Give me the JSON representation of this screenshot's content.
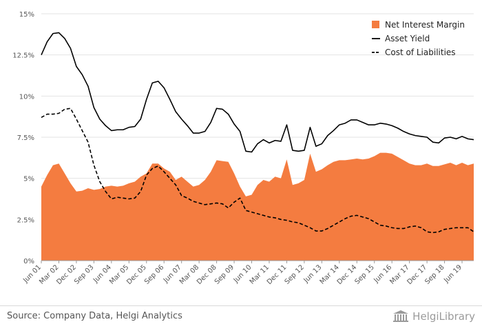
{
  "chart_data": {
    "type": "area+line",
    "ylim": [
      0,
      15
    ],
    "y_ticks": [
      "0%",
      "2.5%",
      "5%",
      "7.5%",
      "10%",
      "12.5%",
      "15%"
    ],
    "y_tick_values": [
      0,
      2.5,
      5,
      7.5,
      10,
      12.5,
      15
    ],
    "x_ticks": [
      "Jun 01",
      "Mar 02",
      "Dec 02",
      "Sep 03",
      "Jun 04",
      "Mar 05",
      "Dec 05",
      "Sep 06",
      "Jun 07",
      "Mar 08",
      "Dec 08",
      "Sep 09",
      "Jun 10",
      "Mar 11",
      "Dec 11",
      "Sep 12",
      "Jun 13",
      "Mar 14",
      "Dec 14",
      "Sep 15",
      "Jun 16",
      "Mar 17",
      "Dec 17",
      "Sep 18",
      "Jun 19"
    ],
    "x": [
      "Jun 01",
      "Sep 01",
      "Dec 01",
      "Mar 02",
      "Jun 02",
      "Sep 02",
      "Dec 02",
      "Mar 03",
      "Jun 03",
      "Sep 03",
      "Dec 03",
      "Mar 04",
      "Jun 04",
      "Sep 04",
      "Dec 04",
      "Mar 05",
      "Jun 05",
      "Sep 05",
      "Dec 05",
      "Mar 06",
      "Jun 06",
      "Sep 06",
      "Dec 06",
      "Mar 07",
      "Jun 07",
      "Sep 07",
      "Dec 07",
      "Mar 08",
      "Jun 08",
      "Sep 08",
      "Dec 08",
      "Mar 09",
      "Jun 09",
      "Sep 09",
      "Dec 09",
      "Mar 10",
      "Jun 10",
      "Sep 10",
      "Dec 10",
      "Mar 11",
      "Jun 11",
      "Sep 11",
      "Dec 11",
      "Mar 12",
      "Jun 12",
      "Sep 12",
      "Dec 12",
      "Mar 13",
      "Jun 13",
      "Sep 13",
      "Dec 13",
      "Mar 14",
      "Jun 14",
      "Sep 14",
      "Dec 14",
      "Mar 15",
      "Jun 15",
      "Sep 15",
      "Dec 15",
      "Mar 16",
      "Jun 16",
      "Sep 16",
      "Dec 16",
      "Mar 17",
      "Jun 17",
      "Sep 17",
      "Dec 17",
      "Mar 18",
      "Jun 18",
      "Sep 18",
      "Dec 18",
      "Mar 19",
      "Jun 19",
      "Sep 19",
      "Dec 19"
    ],
    "series": [
      {
        "name": "Net Interest Margin",
        "kind": "area",
        "color": "#f47c40",
        "values": [
          4.5,
          5.2,
          5.8,
          5.9,
          5.3,
          4.7,
          4.2,
          4.25,
          4.4,
          4.3,
          4.35,
          4.5,
          4.55,
          4.5,
          4.55,
          4.7,
          4.8,
          5.1,
          5.3,
          5.9,
          5.9,
          5.6,
          5.4,
          4.9,
          5.1,
          4.8,
          4.5,
          4.6,
          4.9,
          5.4,
          6.1,
          6.05,
          6.0,
          5.3,
          4.5,
          3.9,
          4.0,
          4.6,
          4.9,
          4.8,
          5.1,
          5.0,
          6.15,
          4.6,
          4.7,
          4.9,
          6.5,
          5.4,
          5.55,
          5.8,
          6.0,
          6.1,
          6.1,
          6.15,
          6.2,
          6.15,
          6.2,
          6.35,
          6.55,
          6.55,
          6.5,
          6.3,
          6.1,
          5.9,
          5.8,
          5.8,
          5.9,
          5.75,
          5.75,
          5.85,
          5.95,
          5.8,
          5.95,
          5.8,
          5.9
        ]
      },
      {
        "name": "Asset Yield",
        "kind": "line",
        "color": "#000000",
        "dash": "solid",
        "values": [
          12.5,
          13.3,
          13.8,
          13.85,
          13.5,
          12.9,
          11.8,
          11.3,
          10.6,
          9.3,
          8.6,
          8.2,
          7.9,
          7.95,
          7.95,
          8.1,
          8.15,
          8.6,
          9.8,
          10.8,
          10.9,
          10.5,
          9.8,
          9.05,
          8.6,
          8.2,
          7.75,
          7.75,
          7.85,
          8.4,
          9.25,
          9.2,
          8.9,
          8.3,
          7.85,
          6.65,
          6.6,
          7.1,
          7.35,
          7.15,
          7.3,
          7.25,
          8.25,
          6.7,
          6.65,
          6.7,
          8.1,
          6.95,
          7.1,
          7.6,
          7.9,
          8.25,
          8.35,
          8.55,
          8.55,
          8.4,
          8.25,
          8.25,
          8.35,
          8.3,
          8.2,
          8.05,
          7.85,
          7.7,
          7.6,
          7.55,
          7.5,
          7.2,
          7.15,
          7.45,
          7.5,
          7.4,
          7.55,
          7.4,
          7.35
        ]
      },
      {
        "name": "Cost of Liabilities",
        "kind": "line",
        "color": "#000000",
        "dash": "dashed",
        "values": [
          8.7,
          8.9,
          8.9,
          8.95,
          9.2,
          9.25,
          8.6,
          7.9,
          7.2,
          5.8,
          4.8,
          4.2,
          3.75,
          3.85,
          3.8,
          3.75,
          3.8,
          4.2,
          5.2,
          5.6,
          5.75,
          5.4,
          5.0,
          4.6,
          3.95,
          3.8,
          3.6,
          3.5,
          3.4,
          3.45,
          3.5,
          3.45,
          3.2,
          3.55,
          3.8,
          3.05,
          2.95,
          2.85,
          2.75,
          2.65,
          2.6,
          2.5,
          2.45,
          2.35,
          2.3,
          2.15,
          2.0,
          1.8,
          1.8,
          1.95,
          2.15,
          2.35,
          2.55,
          2.7,
          2.75,
          2.65,
          2.55,
          2.35,
          2.15,
          2.1,
          2.0,
          1.95,
          1.95,
          2.05,
          2.1,
          2.0,
          1.75,
          1.7,
          1.75,
          1.9,
          1.95,
          2.0,
          2.0,
          2.0,
          1.75
        ]
      }
    ],
    "legend_position": "top-right",
    "grid": "horizontal"
  },
  "footer": {
    "source": "Source: Company Data, Helgi Analytics",
    "logo_text": "HelgiLibrary"
  }
}
